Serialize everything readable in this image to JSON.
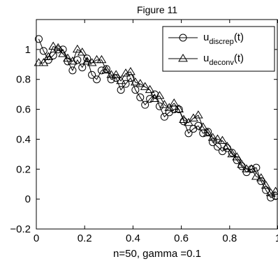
{
  "chart_data": {
    "type": "line",
    "title": "Figure 11",
    "xlabel": "n=50, gamma =0.1",
    "ylabel": "",
    "xlim": [
      0,
      1
    ],
    "ylim": [
      -0.2,
      1.2
    ],
    "xticks": [
      0,
      0.2,
      0.4,
      0.6,
      0.8,
      1
    ],
    "xtick_labels": [
      "0",
      "0.2",
      "0.4",
      "0.6",
      "0.8",
      "1"
    ],
    "yticks": [
      -0.2,
      0,
      0.2,
      0.4,
      0.6,
      0.8,
      1
    ],
    "ytick_labels": [
      "−0.2",
      "0",
      "0.2",
      "0.4",
      "0.6",
      "0.8",
      "1"
    ],
    "grid": false,
    "legend_position": "top-right",
    "x": [
      0.01,
      0.03,
      0.05,
      0.07,
      0.09,
      0.11,
      0.13,
      0.15,
      0.17,
      0.19,
      0.21,
      0.23,
      0.25,
      0.27,
      0.29,
      0.31,
      0.33,
      0.35,
      0.37,
      0.39,
      0.41,
      0.43,
      0.45,
      0.47,
      0.49,
      0.51,
      0.53,
      0.55,
      0.57,
      0.59,
      0.61,
      0.63,
      0.65,
      0.67,
      0.69,
      0.71,
      0.73,
      0.75,
      0.77,
      0.79,
      0.81,
      0.83,
      0.85,
      0.87,
      0.89,
      0.91,
      0.93,
      0.95,
      0.97,
      0.99
    ],
    "series": [
      {
        "name_main": "u",
        "name_sub": "discrep",
        "name_suffix": "(t)",
        "marker": "circle",
        "values": [
          1.07,
          0.99,
          0.93,
          0.96,
          1.0,
          1.0,
          0.92,
          0.86,
          0.93,
          0.88,
          0.94,
          0.83,
          0.8,
          0.86,
          0.87,
          0.8,
          0.81,
          0.73,
          0.77,
          0.81,
          0.73,
          0.68,
          0.63,
          0.67,
          0.7,
          0.62,
          0.55,
          0.58,
          0.6,
          0.6,
          0.52,
          0.44,
          0.47,
          0.49,
          0.44,
          0.45,
          0.38,
          0.35,
          0.32,
          0.34,
          0.31,
          0.26,
          0.22,
          0.18,
          0.2,
          0.21,
          0.12,
          0.06,
          0.01,
          0.02
        ]
      },
      {
        "name_main": "u",
        "name_sub": "deconv",
        "name_suffix": "(t)",
        "marker": "triangle",
        "values": [
          0.91,
          0.91,
          0.95,
          1.02,
          1.01,
          0.97,
          0.94,
          0.92,
          1.0,
          0.98,
          0.92,
          0.91,
          0.93,
          0.93,
          0.86,
          0.83,
          0.83,
          0.79,
          0.84,
          0.85,
          0.78,
          0.77,
          0.75,
          0.73,
          0.67,
          0.69,
          0.63,
          0.61,
          0.64,
          0.6,
          0.53,
          0.51,
          0.54,
          0.56,
          0.48,
          0.44,
          0.41,
          0.4,
          0.39,
          0.35,
          0.3,
          0.28,
          0.23,
          0.2,
          0.2,
          0.15,
          0.14,
          0.09,
          0.04,
          0.05
        ]
      }
    ]
  }
}
